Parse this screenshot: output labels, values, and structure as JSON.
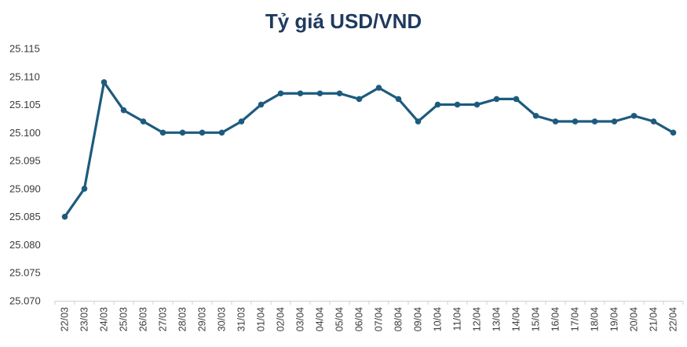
{
  "chart_data": {
    "type": "line",
    "title": "Tỷ giá USD/VND",
    "xlabel": "",
    "ylabel": "",
    "ylim": [
      25.07,
      25.115
    ],
    "y_ticks": [
      "25.070",
      "25.075",
      "25.080",
      "25.085",
      "25.090",
      "25.095",
      "25.100",
      "25.105",
      "25.110",
      "25.115"
    ],
    "grid": false,
    "categories": [
      "22/03",
      "23/03",
      "24/03",
      "25/03",
      "26/03",
      "27/03",
      "28/03",
      "29/03",
      "30/03",
      "31/03",
      "01/04",
      "02/04",
      "03/04",
      "04/04",
      "05/04",
      "06/04",
      "07/04",
      "08/04",
      "09/04",
      "10/04",
      "11/04",
      "12/04",
      "13/04",
      "14/04",
      "15/04",
      "16/04",
      "17/04",
      "18/04",
      "19/04",
      "20/04",
      "21/04",
      "22/04"
    ],
    "series": [
      {
        "name": "USD/VND",
        "color": "#1d5b7e",
        "values": [
          25.085,
          25.09,
          25.109,
          25.104,
          25.102,
          25.1,
          25.1,
          25.1,
          25.1,
          25.102,
          25.105,
          25.107,
          25.107,
          25.107,
          25.107,
          25.106,
          25.108,
          25.106,
          25.102,
          25.105,
          25.105,
          25.105,
          25.106,
          25.106,
          25.103,
          25.102,
          25.102,
          25.102,
          25.102,
          25.103,
          25.102,
          25.1
        ]
      }
    ]
  }
}
